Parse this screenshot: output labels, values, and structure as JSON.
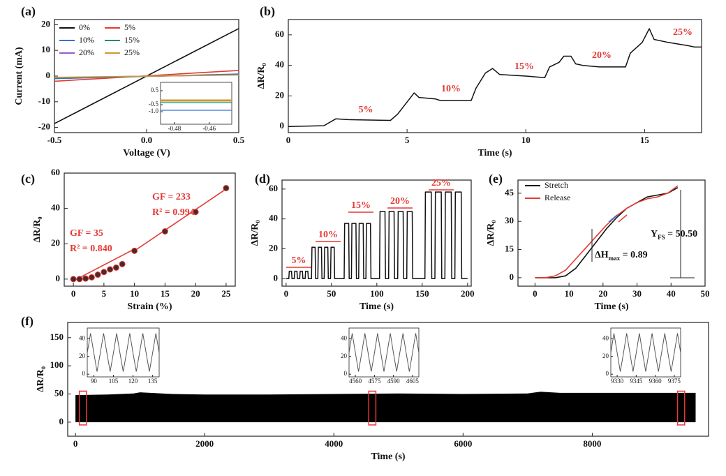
{
  "chart_data": [
    {
      "panel": "(a)",
      "type": "line",
      "xlabel": "Voltage (V)",
      "ylabel": "Current (mA)",
      "xlim": [
        -0.5,
        0.5
      ],
      "ylim": [
        -22,
        22
      ],
      "xticks": [
        -0.5,
        {
          "value": 0,
          "label": "0.0"
        },
        0.5
      ],
      "yticks": [
        20,
        10,
        0,
        -10,
        -20
      ],
      "legend": "top-left",
      "x": [
        -0.5,
        0.5
      ],
      "series": [
        {
          "name": "0%",
          "color": "#111111",
          "values": [
            -18.5,
            18.5
          ]
        },
        {
          "name": "5%",
          "color": "#e53935",
          "values": [
            -2,
            2.2
          ]
        },
        {
          "name": "10%",
          "color": "#3b6fd6",
          "values": [
            -1,
            0.8
          ]
        },
        {
          "name": "15%",
          "color": "#1a8f6a",
          "values": [
            -0.8,
            0.6
          ]
        },
        {
          "name": "20%",
          "color": "#9b59d0",
          "values": [
            -0.6,
            0.5
          ]
        },
        {
          "name": "25%",
          "color": "#c89a3a",
          "values": [
            -0.5,
            0.4
          ]
        }
      ],
      "inset": {
        "xlim": [
          -0.488,
          -0.447
        ],
        "ylim": [
          -1.9,
          1.1
        ],
        "xticks": [
          -0.48,
          -0.46
        ],
        "yticks": [
          0.5,
          -0.5,
          {
            "value": -1,
            "label": "-1.0"
          }
        ],
        "x": [
          -0.488,
          -0.447
        ],
        "lines": [
          {
            "color": "#c89a3a",
            "values": [
              -0.2,
              -0.2
            ]
          },
          {
            "color": "#1a8f6a",
            "values": [
              -0.35,
              -0.35
            ]
          },
          {
            "color": "#3b6fd6",
            "values": [
              -0.9,
              -0.9
            ]
          }
        ]
      }
    },
    {
      "panel": "(b)",
      "type": "line",
      "xlabel": "Time (s)",
      "ylabel": "ΔR/R₀",
      "xlim": [
        0,
        17.4
      ],
      "ylim": [
        -4,
        70
      ],
      "xticks": [
        0,
        5,
        10,
        15
      ],
      "yticks": [
        0,
        20,
        40,
        60
      ],
      "color": "#111111",
      "x": [
        0,
        1.5,
        2,
        2.5,
        4.3,
        4.6,
        5,
        5.3,
        5.5,
        6.2,
        6.4,
        7.7,
        7.9,
        8.3,
        8.6,
        8.9,
        10,
        10.8,
        11,
        11.4,
        11.6,
        11.9,
        12.1,
        12.4,
        13.1,
        14.2,
        14.4,
        14.9,
        15.2,
        15.4,
        16,
        16.8,
        17.1,
        17.4
      ],
      "values": [
        0,
        0.5,
        5,
        4.5,
        4,
        8,
        16,
        22,
        19,
        18,
        17,
        17,
        25,
        35,
        38,
        34,
        33,
        32,
        39,
        42,
        46,
        46,
        41,
        40,
        39,
        39,
        48,
        55,
        64,
        57,
        55,
        53,
        52,
        52
      ],
      "annotations": [
        "5%",
        "10%",
        "15%",
        "20%",
        "25%"
      ]
    },
    {
      "panel": "(c)",
      "type": "scatter",
      "xlabel": "Strain (%)",
      "ylabel": "ΔR/R₀",
      "xlim": [
        -1.5,
        26.5
      ],
      "ylim": [
        -4,
        60
      ],
      "xticks": [
        0,
        5,
        10,
        15,
        20,
        25
      ],
      "yticks": [
        0,
        20,
        40,
        60
      ],
      "color": "#e53935",
      "x": [
        0,
        1,
        2,
        3,
        4,
        5,
        6,
        7,
        8,
        10,
        15,
        20,
        25
      ],
      "values": [
        0,
        0,
        0.3,
        1,
        2.5,
        4,
        5.5,
        6.5,
        8.5,
        16,
        27,
        38,
        51.5
      ],
      "fits": [
        {
          "x": [
            0,
            10
          ],
          "values": [
            -1,
            17
          ]
        },
        {
          "x": [
            10,
            25
          ],
          "values": [
            16,
            51
          ]
        }
      ],
      "annotations": [
        "GF = 233",
        "R² = 0.994",
        "GF = 35",
        "R² = 0.840"
      ]
    },
    {
      "panel": "(d)",
      "type": "line",
      "xlabel": "Time (s)",
      "ylabel": "ΔR/R₀",
      "xlim": [
        -4.5,
        204
      ],
      "ylim": [
        -5,
        66
      ],
      "xticks": [
        0,
        50,
        100,
        150,
        200
      ],
      "yticks": [
        0,
        20,
        40,
        60
      ],
      "color": "#111111",
      "x": [
        0,
        3,
        3.5,
        6,
        6.5,
        9,
        9.5,
        12,
        12.5,
        15,
        15.5,
        18,
        18.5,
        21,
        21.5,
        24,
        24.5,
        28,
        28.5,
        32,
        32.5,
        35,
        35.5,
        39,
        39.5,
        42,
        42.5,
        46,
        46.5,
        49,
        49.5,
        53,
        53.5,
        64,
        64.5,
        69,
        69.5,
        72,
        72.5,
        77,
        77.5,
        80,
        80.5,
        85,
        85.5,
        88,
        88.5,
        93,
        93.5,
        103,
        103.5,
        109,
        109.5,
        113,
        113.5,
        119,
        119.5,
        123,
        123.5,
        129,
        129.5,
        133,
        133.5,
        139,
        139.5,
        153,
        153.5,
        160,
        160.5,
        164,
        164.5,
        171,
        171.5,
        175,
        175.5,
        182,
        182.5,
        186,
        186.5,
        193,
        193.5,
        200
      ],
      "values": [
        0,
        0,
        5,
        5,
        0,
        0,
        5,
        5,
        0,
        0,
        5,
        5,
        0,
        0,
        5,
        5,
        0,
        0,
        21,
        21,
        0,
        0,
        21,
        21,
        0,
        0,
        21,
        21,
        0,
        0,
        21,
        21,
        0,
        0,
        37,
        37,
        0,
        0,
        37,
        37,
        0,
        0,
        37,
        37,
        0,
        0,
        37,
        37,
        0,
        0,
        45,
        45,
        0,
        0,
        45,
        45,
        0,
        0,
        45,
        45,
        0,
        0,
        45,
        45,
        0,
        0,
        58,
        58,
        0,
        0,
        58,
        58,
        0,
        0,
        58,
        58,
        0,
        0,
        58,
        58,
        0,
        0
      ],
      "annotations": [
        "5%",
        "10%",
        "15%",
        "20%",
        "25%"
      ]
    },
    {
      "panel": "(e)",
      "type": "line",
      "xlabel": "Time (s)",
      "ylabel": "ΔR/R₀",
      "xlim": [
        -5,
        50
      ],
      "ylim": [
        -4.5,
        52
      ],
      "xticks": [
        0,
        10,
        20,
        30,
        40,
        50
      ],
      "yticks": [
        0,
        15,
        30,
        45
      ],
      "legend": "top-left",
      "x": [
        0,
        3,
        6,
        9,
        12,
        15,
        18,
        21,
        24,
        27,
        30,
        33,
        36,
        39,
        42
      ],
      "series": [
        {
          "name": "Stretch",
          "color": "#111111",
          "values": [
            0,
            0,
            0,
            1,
            5,
            12,
            19,
            26,
            32,
            37,
            40,
            43,
            44,
            45,
            48
          ]
        },
        {
          "name": "Release",
          "color": "#e53935",
          "values": [
            0,
            0,
            1,
            4,
            10,
            16,
            22,
            28,
            33,
            37,
            40,
            42,
            43,
            45,
            49
          ]
        }
      ],
      "annotations": [
        [
          "Y",
          "FS",
          " = 50.50"
        ],
        [
          "ΔH",
          "max",
          " = 0.89"
        ]
      ]
    },
    {
      "panel": "(f)",
      "type": "area",
      "xlabel": "Time (s)",
      "ylabel": "ΔR/R₀",
      "xlim": [
        -120,
        9800
      ],
      "ylim": [
        -25,
        177
      ],
      "xticks": [
        0,
        2000,
        4000,
        6000,
        8000
      ],
      "yticks": [
        0,
        50,
        100,
        150
      ],
      "color": "#000000",
      "x": [
        0,
        500,
        900,
        1000,
        1500,
        2000,
        3000,
        4000,
        5000,
        6000,
        7000,
        7200,
        7500,
        8000,
        9000,
        9600
      ],
      "values": [
        48,
        49,
        51,
        53,
        50,
        49,
        49,
        50,
        51,
        50,
        51,
        54,
        52,
        52,
        52,
        52
      ],
      "insets": [
        {
          "highlight": [
            60,
            170
          ],
          "xlim": [
            85,
            140
          ],
          "ylim": [
            -3,
            52
          ],
          "xticks": [
            90,
            105,
            120,
            135
          ],
          "yticks": [
            0,
            20,
            40
          ],
          "x": [
            85,
            87.5,
            90,
            92.5,
            95,
            97.5,
            100,
            102.5,
            105,
            107.5,
            110,
            112.5,
            115,
            117.5,
            120,
            122.5,
            125,
            127.5,
            130,
            132.5,
            135,
            137.5,
            140
          ],
          "values": [
            24,
            46,
            24,
            3,
            24,
            46,
            24,
            3,
            24,
            46,
            24,
            3,
            24,
            46,
            24,
            3,
            24,
            46,
            24,
            3,
            24,
            46,
            24
          ]
        },
        {
          "highlight": [
            4540,
            4650
          ],
          "xlim": [
            4555,
            4610
          ],
          "ylim": [
            -3,
            52
          ],
          "xticks": [
            4560,
            4575,
            4590,
            4605
          ],
          "yticks": [
            0,
            20,
            40
          ],
          "x": [
            4555,
            4557.5,
            4560,
            4562.5,
            4565,
            4567.5,
            4570,
            4572.5,
            4575,
            4577.5,
            4580,
            4582.5,
            4585,
            4587.5,
            4590,
            4592.5,
            4595,
            4597.5,
            4600,
            4602.5,
            4605,
            4607.5,
            4610
          ],
          "values": [
            24,
            46,
            24,
            3,
            24,
            46,
            24,
            3,
            24,
            46,
            24,
            3,
            24,
            46,
            24,
            3,
            24,
            46,
            24,
            3,
            24,
            46,
            24
          ]
        },
        {
          "highlight": [
            9320,
            9430
          ],
          "xlim": [
            9325,
            9380
          ],
          "ylim": [
            -3,
            52
          ],
          "xticks": [
            9330,
            9345,
            9360,
            9375
          ],
          "yticks": [
            0,
            20,
            40
          ],
          "x": [
            9325,
            9327.5,
            9330,
            9332.5,
            9335,
            9337.5,
            9340,
            9342.5,
            9345,
            9347.5,
            9350,
            9352.5,
            9355,
            9357.5,
            9360,
            9362.5,
            9365,
            9367.5,
            9370,
            9372.5,
            9375,
            9377.5,
            9380
          ],
          "values": [
            24,
            46,
            24,
            3,
            24,
            46,
            24,
            3,
            24,
            46,
            24,
            3,
            24,
            46,
            24,
            3,
            24,
            46,
            24,
            3,
            24,
            46,
            24
          ]
        }
      ]
    }
  ]
}
